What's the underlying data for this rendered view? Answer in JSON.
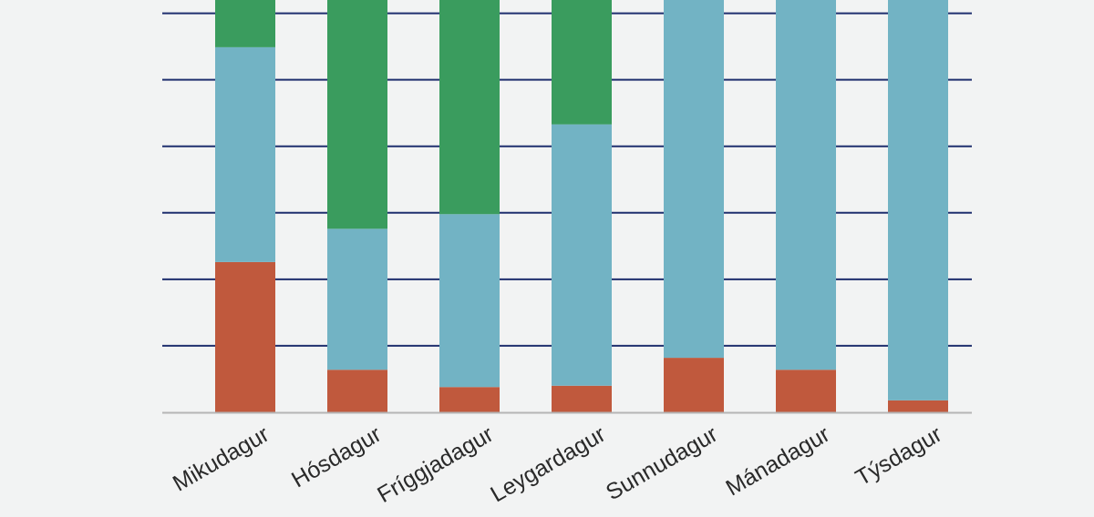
{
  "chart_data": {
    "type": "bar",
    "stacked": true,
    "title": "",
    "xlabel": "",
    "ylabel": "",
    "categories": [
      "Mikudagur",
      "Hósdagur",
      "Fríggjadagur",
      "Leygardagur",
      "Sunnudagur",
      "Mánadagur",
      "Týsdagur"
    ],
    "series": [
      {
        "color": "#c0593d",
        "values": [
          2.26,
          0.64,
          0.38,
          0.4,
          0.82,
          0.64,
          0.18
        ]
      },
      {
        "color": "#72b3c4",
        "values": [
          3.23,
          2.12,
          2.6,
          3.93,
          5.38,
          5.56,
          6.02
        ]
      },
      {
        "color": "#3a9c5e",
        "values": [
          0.71,
          3.44,
          3.22,
          1.87,
          0,
          0,
          0
        ]
      }
    ],
    "ylim": [
      0,
      6.2
    ],
    "gridlines": [
      1,
      2,
      3,
      4,
      5,
      6
    ],
    "grid": true,
    "grid_color": "#1f2f6e",
    "legend": "none",
    "note_visible": "y-axis tick labels not shown; top of bars cropped"
  }
}
